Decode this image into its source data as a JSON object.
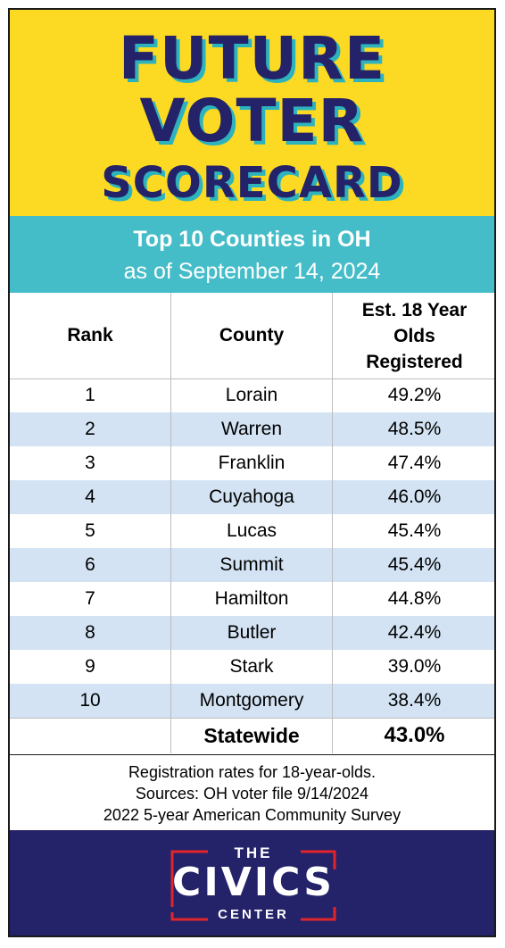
{
  "header": {
    "line1": "FUTURE",
    "line2": "VOTER",
    "line3": "SCORECARD"
  },
  "subtitle": {
    "line1": "Top 10 Counties in OH",
    "line2": "as of September 14, 2024"
  },
  "table": {
    "headers": {
      "rank": "Rank",
      "county": "County",
      "est_line1": "Est. 18 Year",
      "est_line2": "Olds",
      "est_line3": "Registered"
    },
    "rows": [
      {
        "rank": "1",
        "county": "Lorain",
        "rate": "49.2%"
      },
      {
        "rank": "2",
        "county": "Warren",
        "rate": "48.5%"
      },
      {
        "rank": "3",
        "county": "Franklin",
        "rate": "47.4%"
      },
      {
        "rank": "4",
        "county": "Cuyahoga",
        "rate": "46.0%"
      },
      {
        "rank": "5",
        "county": "Lucas",
        "rate": "45.4%"
      },
      {
        "rank": "6",
        "county": "Summit",
        "rate": "45.4%"
      },
      {
        "rank": "7",
        "county": "Hamilton",
        "rate": "44.8%"
      },
      {
        "rank": "8",
        "county": "Butler",
        "rate": "42.4%"
      },
      {
        "rank": "9",
        "county": "Stark",
        "rate": "39.0%"
      },
      {
        "rank": "10",
        "county": "Montgomery",
        "rate": "38.4%"
      }
    ],
    "statewide": {
      "label": "Statewide",
      "rate": "43.0%"
    }
  },
  "footnote": {
    "line1": "Registration rates for 18-year-olds.",
    "line2": "Sources: OH voter file 9/14/2024",
    "line3": "2022 5-year American Community Survey"
  },
  "logo": {
    "the": "THE",
    "civics": "CIVICS",
    "center": "CENTER"
  },
  "colors": {
    "yellow": "#fcd922",
    "navy": "#242268",
    "teal": "#45bdc8",
    "row_alt": "#d3e3f3",
    "logo_red": "#e0252b"
  }
}
